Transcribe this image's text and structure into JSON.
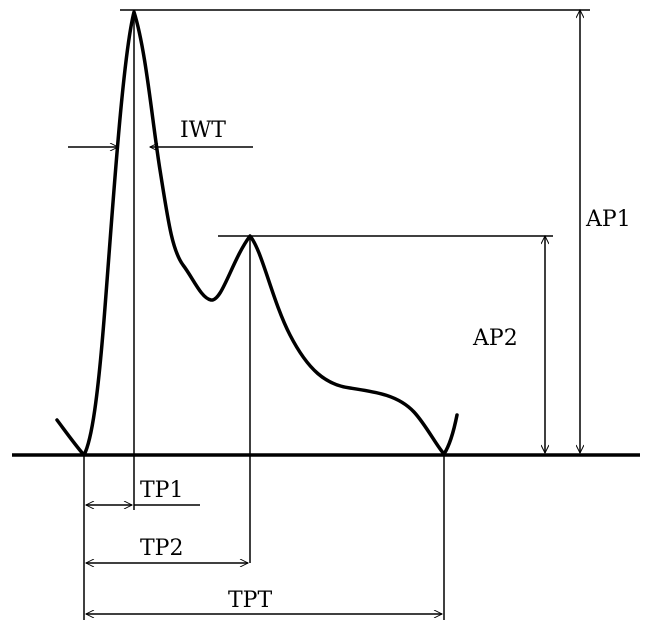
{
  "labels": {
    "iwt": "IWT",
    "ap1": "AP1",
    "ap2": "AP2",
    "tp1": "TP1",
    "tp2": "TP2",
    "tpt": "TPT"
  },
  "colors": {
    "ink": "#000000",
    "background": "#ffffff"
  }
}
